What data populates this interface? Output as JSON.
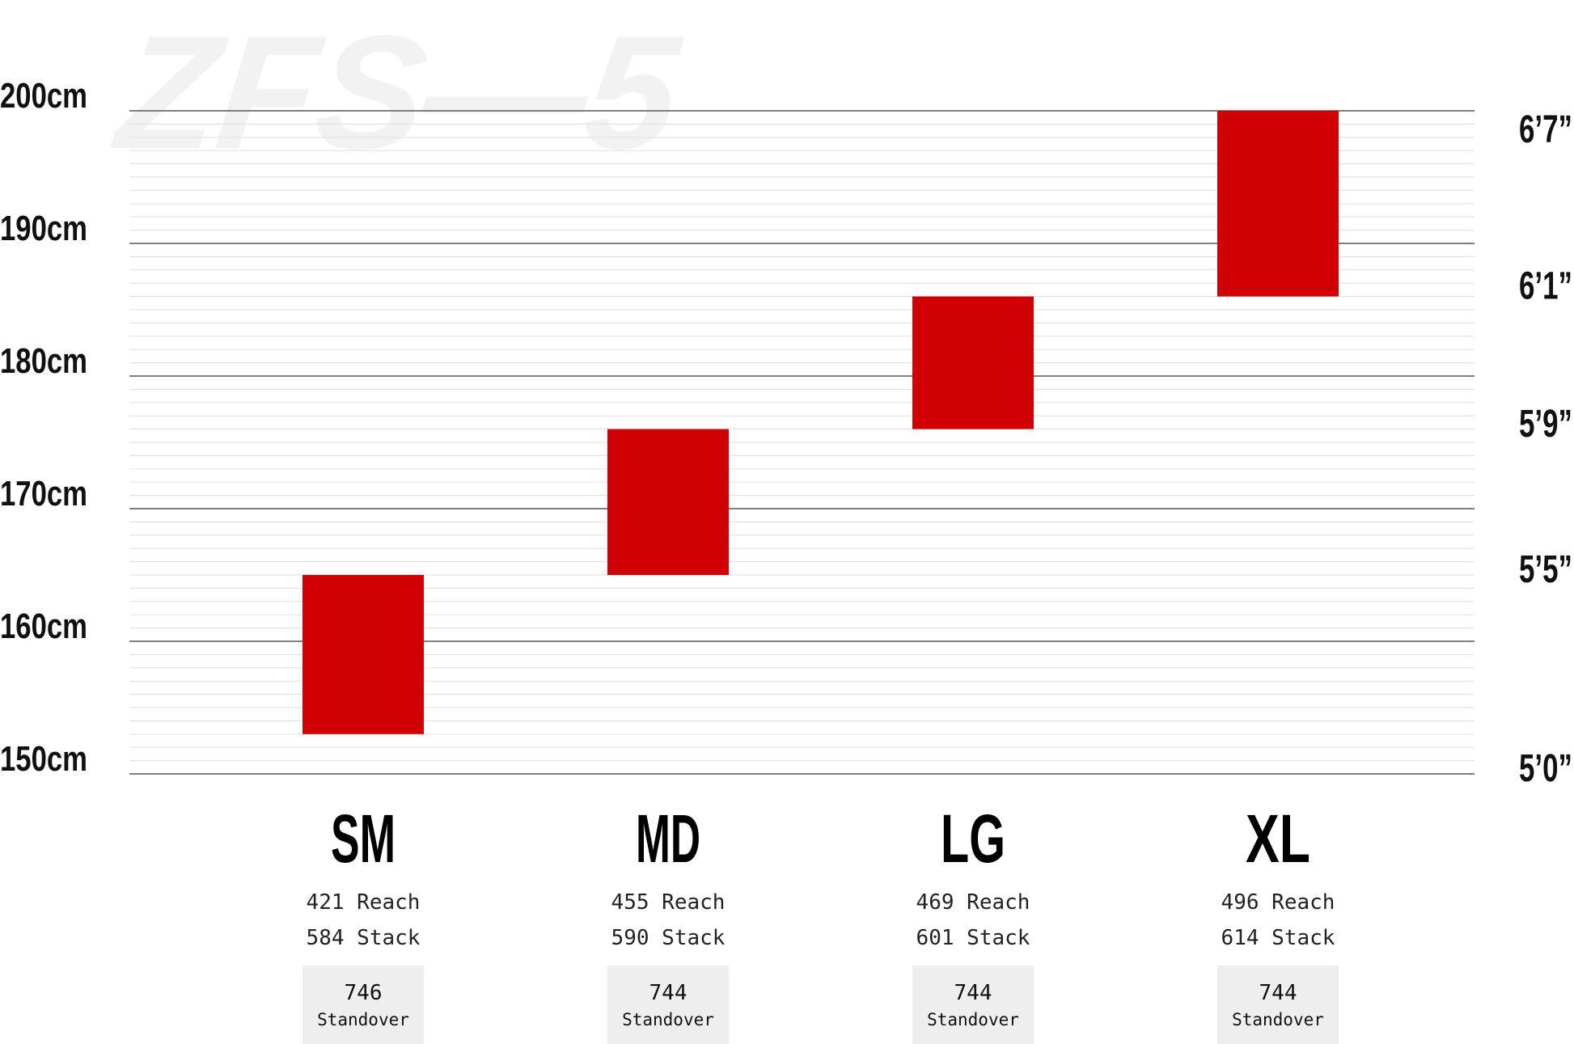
{
  "watermark": "ZFS—5",
  "colors": {
    "bar": "#d10005",
    "major_grid": "#555555",
    "minor_grid": "#e3e3e3",
    "standover_box": "#eeeeee",
    "text": "#111111",
    "watermark": "#f2f2f2"
  },
  "chart_data": {
    "type": "bar",
    "subtype": "floating-range",
    "categories": [
      "SM",
      "MD",
      "LG",
      "XL"
    ],
    "ranges_cm": [
      [
        153,
        165
      ],
      [
        165,
        176
      ],
      [
        176,
        186
      ],
      [
        186,
        200
      ]
    ],
    "ylim": [
      150,
      200
    ],
    "left_ticks": [
      {
        "value": 200,
        "label": "200cm"
      },
      {
        "value": 190,
        "label": "190cm"
      },
      {
        "value": 180,
        "label": "180cm"
      },
      {
        "value": 170,
        "label": "170cm"
      },
      {
        "value": 160,
        "label": "160cm"
      },
      {
        "value": 150,
        "label": "150cm"
      }
    ],
    "right_ticks": [
      {
        "value": 199.1,
        "label": "6’7”"
      },
      {
        "value": 187.3,
        "label": "6’1”"
      },
      {
        "value": 176.9,
        "label": "5’9”"
      },
      {
        "value": 165.9,
        "label": "5’5”"
      },
      {
        "value": 150.9,
        "label": "5’0”"
      }
    ],
    "grid": true,
    "sizes": [
      {
        "label": "SM",
        "reach": "421",
        "reach_label": "Reach",
        "stack": "584",
        "stack_label": "Stack",
        "standover": "746",
        "standover_label": "Standover"
      },
      {
        "label": "MD",
        "reach": "455",
        "reach_label": "Reach",
        "stack": "590",
        "stack_label": "Stack",
        "standover": "744",
        "standover_label": "Standover"
      },
      {
        "label": "LG",
        "reach": "469",
        "reach_label": "Reach",
        "stack": "601",
        "stack_label": "Stack",
        "standover": "744",
        "standover_label": "Standover"
      },
      {
        "label": "XL",
        "reach": "496",
        "reach_label": "Reach",
        "stack": "614",
        "stack_label": "Stack",
        "standover": "744",
        "standover_label": "Standover"
      }
    ]
  }
}
